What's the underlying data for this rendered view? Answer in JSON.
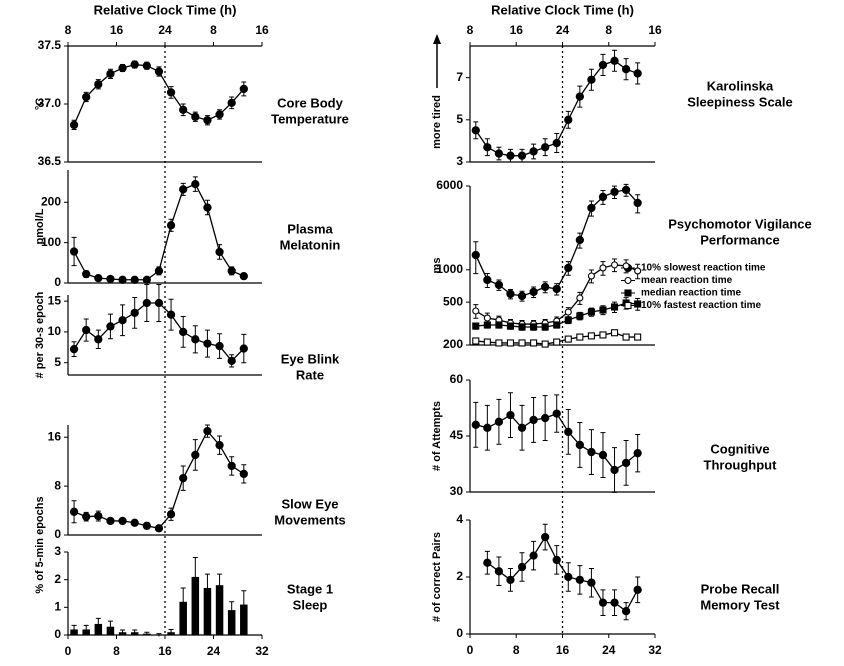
{
  "chart_data": [
    {
      "type": "line",
      "title": [
        "Core Body",
        "Temperature"
      ],
      "ylabel": "°C",
      "x2label": "Relative Clock Time (h)",
      "x2ticks": [
        {
          "value": 0,
          "label": "8"
        },
        {
          "value": 8,
          "label": "16"
        },
        {
          "value": 16,
          "label": "24"
        },
        {
          "value": 24,
          "label": "8"
        },
        {
          "value": 32,
          "label": "16"
        }
      ],
      "vline": 16,
      "xlim": [
        0,
        32
      ],
      "x": [
        1,
        3,
        5,
        7,
        9,
        11,
        13,
        15,
        17,
        19,
        21,
        23,
        25,
        27,
        29
      ],
      "ylim": [
        36.5,
        37.5
      ],
      "yticks": [
        36.5,
        {
          "value": 37,
          "label": "37.0"
        },
        37.5
      ],
      "series": [
        {
          "color": "#000000",
          "marker": "circle-filled",
          "values": [
            36.82,
            37.06,
            37.17,
            37.26,
            37.31,
            37.34,
            37.33,
            37.28,
            37.1,
            36.95,
            36.89,
            36.86,
            36.91,
            37.01,
            37.13
          ],
          "errors": [
            0.04,
            0.04,
            0.04,
            0.04,
            0.03,
            0.03,
            0.03,
            0.04,
            0.05,
            0.05,
            0.04,
            0.04,
            0.04,
            0.05,
            0.06
          ]
        }
      ]
    },
    {
      "type": "line",
      "title": [
        "Plasma",
        "Melatonin"
      ],
      "ylabel": "pmol/L",
      "xlim": [
        0,
        32
      ],
      "x": [
        1,
        3,
        5,
        7,
        9,
        11,
        13,
        15,
        17,
        19,
        21,
        23,
        25,
        27,
        29
      ],
      "ylim": [
        0,
        280
      ],
      "yticks": [
        0,
        100,
        200
      ],
      "series": [
        {
          "color": "#000000",
          "marker": "circle-filled",
          "values": [
            78,
            22,
            12,
            10,
            8,
            8,
            8,
            30,
            143,
            232,
            245,
            187,
            77,
            30,
            17
          ],
          "errors": [
            35,
            8,
            4,
            3,
            3,
            3,
            3,
            10,
            15,
            15,
            18,
            18,
            18,
            10,
            6
          ]
        }
      ]
    },
    {
      "type": "line",
      "title": [
        "Eye Blink",
        "Rate"
      ],
      "ylabel": "# per 30-s epoch",
      "xlim": [
        0,
        32
      ],
      "x": [
        1,
        3,
        5,
        7,
        9,
        11,
        13,
        15,
        17,
        19,
        21,
        23,
        25,
        27,
        29
      ],
      "ylim": [
        3,
        16
      ],
      "yticks": [
        5,
        10,
        15
      ],
      "series": [
        {
          "color": "#000000",
          "marker": "circle-filled",
          "values": [
            7.2,
            10.3,
            8.8,
            10.9,
            11.9,
            13.1,
            14.7,
            14.7,
            12.8,
            10.0,
            8.8,
            8.1,
            7.7,
            5.3,
            7.3
          ],
          "errors": [
            1.2,
            1.8,
            1.5,
            2,
            2.5,
            2.5,
            3,
            3,
            2.5,
            2.5,
            2.2,
            2.2,
            2,
            1,
            2.3
          ]
        }
      ]
    },
    {
      "type": "line",
      "title": [
        "Slow Eye",
        "Movements"
      ],
      "ylabel": "% of 5-min epochs",
      "xlim": [
        0,
        32
      ],
      "x": [
        1,
        3,
        5,
        7,
        9,
        11,
        13,
        15,
        17,
        19,
        21,
        23,
        25,
        27,
        29
      ],
      "ylim": [
        0,
        18
      ],
      "yticks": [
        0,
        8,
        16
      ],
      "series": [
        {
          "color": "#000000",
          "marker": "circle-filled",
          "values": [
            3.8,
            3.0,
            3.1,
            2.3,
            2.3,
            2.0,
            1.5,
            1.1,
            3.4,
            9.3,
            13.1,
            17.0,
            14.7,
            11.3,
            10.0
          ],
          "errors": [
            1.8,
            0.7,
            0.8,
            0.4,
            0.4,
            0.4,
            0.5,
            0.3,
            1,
            2,
            2.5,
            1,
            1.5,
            1.5,
            1.5
          ]
        }
      ]
    },
    {
      "type": "bar",
      "title": [
        "Stage 1",
        "Sleep"
      ],
      "xlim": [
        0,
        32
      ],
      "xticks": [
        0,
        8,
        16,
        24,
        32
      ],
      "x": [
        1,
        3,
        5,
        7,
        9,
        11,
        13,
        15,
        17,
        19,
        21,
        23,
        25,
        27,
        29
      ],
      "ylim": [
        0,
        3
      ],
      "yticks": [
        0,
        1,
        2,
        3
      ],
      "series": [
        {
          "color": "#000000",
          "values": [
            0.2,
            0.2,
            0.4,
            0.3,
            0.1,
            0.1,
            0.05,
            0,
            0.1,
            1.2,
            2.1,
            1.7,
            1.8,
            0.9,
            1.1
          ],
          "errors": [
            0.15,
            0.15,
            0.2,
            0.2,
            0.08,
            0.08,
            0.05,
            0.05,
            0.1,
            0.5,
            0.7,
            0.5,
            0.4,
            0.3,
            0.5
          ]
        }
      ]
    },
    {
      "type": "line",
      "title": [
        "Karolinska",
        "Sleepiness Scale"
      ],
      "ylabel": "more tired",
      "x2label": "Relative Clock Time (h)",
      "x2ticks": [
        {
          "value": 0,
          "label": "8"
        },
        {
          "value": 8,
          "label": "16"
        },
        {
          "value": 16,
          "label": "24"
        },
        {
          "value": 24,
          "label": "8"
        },
        {
          "value": 32,
          "label": "16"
        }
      ],
      "vline": 16,
      "xlim": [
        0,
        32
      ],
      "x": [
        1,
        3,
        5,
        7,
        9,
        11,
        13,
        15,
        17,
        19,
        21,
        23,
        25,
        27,
        29
      ],
      "ylim": [
        3,
        8.5
      ],
      "yticks": [
        3,
        5,
        7
      ],
      "series": [
        {
          "color": "#000000",
          "marker": "circle-filled",
          "values": [
            4.5,
            3.7,
            3.4,
            3.3,
            3.3,
            3.5,
            3.7,
            3.9,
            5.0,
            6.1,
            6.9,
            7.6,
            7.8,
            7.4,
            7.2
          ],
          "errors": [
            0.4,
            0.4,
            0.3,
            0.3,
            0.3,
            0.35,
            0.4,
            0.45,
            0.4,
            0.5,
            0.5,
            0.5,
            0.5,
            0.5,
            0.5
          ]
        }
      ]
    },
    {
      "type": "line",
      "title": [
        "Psychomotor Vigilance",
        "Performance"
      ],
      "ylabel": "ms",
      "log": true,
      "xlim": [
        0,
        32
      ],
      "x": [
        1,
        3,
        5,
        7,
        9,
        11,
        13,
        15,
        17,
        19,
        21,
        23,
        25,
        27,
        29
      ],
      "ylim": [
        200,
        6000
      ],
      "yticks": [
        200,
        500,
        1000,
        6000
      ],
      "series": [
        {
          "name": "10% slowest reaction time",
          "color": "#000000",
          "marker": "circle-filled",
          "values": [
            1370,
            804,
            723,
            596,
            571,
            622,
            692,
            663,
            1040,
            1890,
            3750,
            4750,
            5290,
            5520,
            4180
          ],
          "errors": [
            450,
            120,
            80,
            60,
            60,
            70,
            80,
            80,
            150,
            300,
            600,
            700,
            700,
            700,
            800
          ]
        },
        {
          "name": "mean reaction time",
          "color": "#000000",
          "marker": "circle-open",
          "values": [
            414,
            356,
            341,
            320,
            313,
            313,
            320,
            334,
            405,
            547,
            875,
            1040,
            1110,
            1085,
            975
          ],
          "errors": [
            60,
            40,
            30,
            25,
            25,
            25,
            25,
            30,
            40,
            70,
            120,
            150,
            150,
            150,
            150
          ]
        },
        {
          "name": "median reaction time",
          "color": "#000000",
          "marker": "square-filled",
          "values": [
            300,
            307,
            307,
            300,
            294,
            294,
            294,
            307,
            341,
            372,
            405,
            423,
            451,
            491,
            481
          ],
          "errors": [
            20,
            20,
            20,
            20,
            20,
            20,
            20,
            20,
            25,
            30,
            35,
            40,
            50,
            60,
            60
          ]
        },
        {
          "name": "10% fastest reaction time",
          "color": "#000000",
          "marker": "square-open",
          "values": [
            218,
            213,
            209,
            209,
            209,
            209,
            204,
            213,
            227,
            237,
            243,
            248,
            260,
            237,
            237
          ],
          "errors": [
            10,
            10,
            8,
            8,
            8,
            8,
            8,
            10,
            10,
            10,
            12,
            12,
            12,
            12,
            12
          ]
        }
      ]
    },
    {
      "type": "line",
      "title": [
        "Cognitive",
        "Throughput"
      ],
      "ylabel": "# of Attempts",
      "xlim": [
        0,
        32
      ],
      "x": [
        1,
        3,
        5,
        7,
        9,
        11,
        13,
        15,
        17,
        19,
        21,
        23,
        25,
        27,
        29
      ],
      "ylim": [
        30,
        60
      ],
      "yticks": [
        30,
        45,
        60
      ],
      "series": [
        {
          "color": "#000000",
          "marker": "circle-filled",
          "values": [
            48,
            47.2,
            48.8,
            50.6,
            47.2,
            49.3,
            49.8,
            51,
            46.1,
            42.6,
            40.7,
            39.9,
            35.9,
            37.8,
            40.4
          ],
          "errors": [
            6,
            6,
            6,
            6,
            6,
            6,
            6,
            5,
            6,
            6,
            6,
            6,
            6,
            6,
            5
          ]
        }
      ]
    },
    {
      "type": "line",
      "title": [
        "Probe Recall",
        "Memory Test"
      ],
      "ylabel": "# of correct Pairs",
      "xlim": [
        0,
        32
      ],
      "xticks": [
        0,
        8,
        16,
        24,
        32
      ],
      "x": [
        3,
        5,
        7,
        9,
        11,
        13,
        15,
        17,
        19,
        21,
        23,
        25,
        27,
        29
      ],
      "ylim": [
        0,
        4
      ],
      "yticks": [
        0,
        2,
        4
      ],
      "series": [
        {
          "color": "#000000",
          "marker": "circle-filled",
          "values": [
            2.5,
            2.2,
            1.9,
            2.35,
            2.75,
            3.4,
            2.6,
            2.0,
            1.9,
            1.8,
            1.1,
            1.1,
            0.8,
            1.55
          ],
          "errors": [
            0.4,
            0.5,
            0.4,
            0.5,
            0.5,
            0.45,
            0.5,
            0.5,
            0.5,
            0.5,
            0.45,
            0.45,
            0.3,
            0.45
          ]
        }
      ]
    }
  ]
}
